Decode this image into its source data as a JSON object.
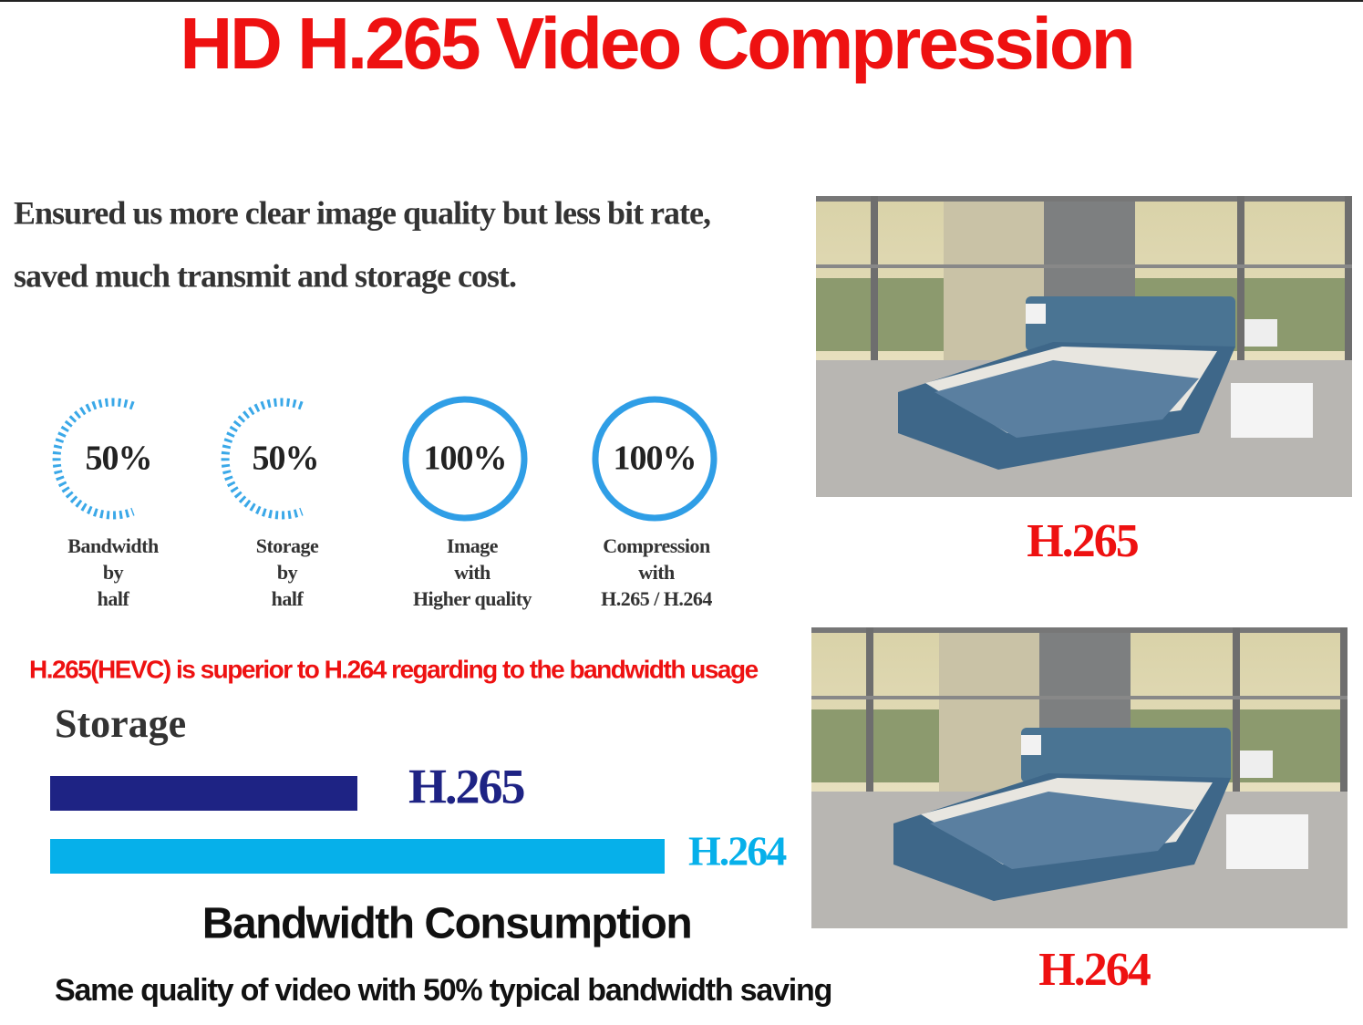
{
  "header": {
    "title": "HD H.265 Video Compression"
  },
  "intro": {
    "lines": [
      "Ensured us more clear image quality but less bit rate,",
      "saved much transmit and storage cost."
    ]
  },
  "stats": [
    {
      "value": "50%",
      "label": [
        "Bandwidth",
        "by",
        "half"
      ]
    },
    {
      "value": "50%",
      "label": [
        "Storage",
        "by",
        "half"
      ]
    },
    {
      "value": "100%",
      "label": [
        "Image",
        "with",
        "Higher quality"
      ]
    },
    {
      "value": "100%",
      "label": [
        "Compression",
        "with",
        "H.265 / H.264"
      ]
    }
  ],
  "note": "H.265(HEVC) is superior to H.264 regarding to the bandwidth usage",
  "storage": {
    "title": "Storage",
    "bars": [
      "H.265",
      "H.264"
    ]
  },
  "bandwidth_title": "Bandwidth Consumption",
  "footer": "Same quality of video with 50% typical bandwidth saving",
  "images": [
    {
      "caption": "H.265"
    },
    {
      "caption": "H.264"
    }
  ]
}
